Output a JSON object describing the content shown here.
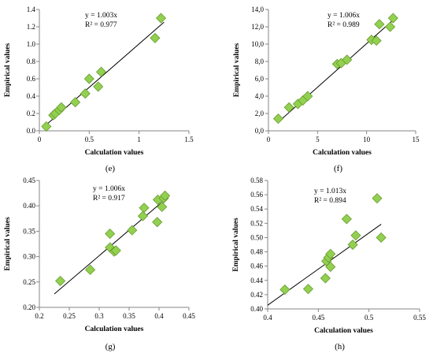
{
  "figure": {
    "marker_color": "#92d050",
    "marker_stroke": "#6a9a32",
    "line_color": "#000000"
  },
  "chart_data": [
    {
      "id": "e",
      "type": "scatter",
      "panel_label": "(e)",
      "xlabel": "Calculation values",
      "ylabel": "Empirical values",
      "xlim": [
        0,
        1.5
      ],
      "ylim": [
        0,
        1.4
      ],
      "xticks": [
        "0",
        "0.5",
        "1",
        "1.5"
      ],
      "yticks": [
        "0.0",
        "0.2",
        "0.4",
        "0.6",
        "0.8",
        "1.0",
        "1.2",
        "1.4"
      ],
      "x": [
        0.07,
        0.14,
        0.16,
        0.2,
        0.22,
        0.36,
        0.46,
        0.5,
        0.59,
        0.62,
        1.16,
        1.22
      ],
      "y": [
        0.05,
        0.18,
        0.2,
        0.24,
        0.27,
        0.33,
        0.43,
        0.6,
        0.51,
        0.68,
        1.07,
        1.3
      ],
      "trendline": {
        "slope": 1.003,
        "x_range": [
          0.07,
          1.25
        ]
      },
      "equation": "y = 1.003x",
      "r2": "R² = 0.977",
      "grid": false
    },
    {
      "id": "f",
      "type": "scatter",
      "panel_label": "(f)",
      "xlabel": "Calculation values",
      "ylabel": "Empirical values",
      "xlim": [
        0,
        15
      ],
      "ylim": [
        0,
        14
      ],
      "xticks": [
        "0",
        "5",
        "10",
        "15"
      ],
      "yticks": [
        "0,0",
        "2,0",
        "4,0",
        "6,0",
        "8,0",
        "10,0",
        "12,0",
        "14,0"
      ],
      "x": [
        1.0,
        2.1,
        3.0,
        3.5,
        4.0,
        7.0,
        7.4,
        8.0,
        10.5,
        11.0,
        11.3,
        12.4,
        12.7
      ],
      "y": [
        1.4,
        2.7,
        3.1,
        3.5,
        4.0,
        7.7,
        7.8,
        8.2,
        10.5,
        10.4,
        12.3,
        12.0,
        13.0
      ],
      "trendline": {
        "slope": 1.006,
        "x_range": [
          1.0,
          12.9
        ]
      },
      "equation": "y = 1.006x",
      "r2": "R² = 0.989",
      "grid": false
    },
    {
      "id": "g",
      "type": "scatter",
      "panel_label": "(g)",
      "xlabel": "Calculation values",
      "ylabel": "Empirical values",
      "xlim": [
        0.2,
        0.45
      ],
      "ylim": [
        0.2,
        0.45
      ],
      "xticks": [
        "0.2",
        "0.25",
        "0.3",
        "0.35",
        "0.4",
        "0.45"
      ],
      "yticks": [
        "0.20",
        "0.25",
        "0.30",
        "0.35",
        "0.40",
        "0.45"
      ],
      "x": [
        0.235,
        0.285,
        0.318,
        0.318,
        0.325,
        0.328,
        0.355,
        0.373,
        0.375,
        0.397,
        0.398,
        0.405,
        0.408,
        0.41
      ],
      "y": [
        0.252,
        0.274,
        0.345,
        0.318,
        0.31,
        0.312,
        0.352,
        0.38,
        0.396,
        0.368,
        0.412,
        0.398,
        0.415,
        0.42
      ],
      "trendline": {
        "slope": 1.006,
        "x_range": [
          0.225,
          0.415
        ]
      },
      "equation": "y = 1.006x",
      "r2": "R² = 0.917",
      "grid": false
    },
    {
      "id": "h",
      "type": "scatter",
      "panel_label": "(h)",
      "xlabel": "Calculation values",
      "ylabel": "Empirical values",
      "xlim": [
        0.4,
        0.55
      ],
      "ylim": [
        0.4,
        0.58
      ],
      "xticks": [
        "0.4",
        "0.45",
        "0.5",
        "0.55"
      ],
      "yticks": [
        "0.40",
        "0.42",
        "0.44",
        "0.46",
        "0.48",
        "0.50",
        "0.52",
        "0.54",
        "0.56",
        "0.58"
      ],
      "x": [
        0.417,
        0.44,
        0.457,
        0.458,
        0.46,
        0.462,
        0.462,
        0.478,
        0.484,
        0.487,
        0.508,
        0.512
      ],
      "y": [
        0.427,
        0.428,
        0.443,
        0.467,
        0.472,
        0.477,
        0.459,
        0.526,
        0.49,
        0.503,
        0.555,
        0.5
      ],
      "trendline": {
        "slope": 1.013,
        "x_range": [
          0.4,
          0.512
        ]
      },
      "equation": "y = 1.013x",
      "r2": "R² = 0.894",
      "grid": false
    }
  ]
}
